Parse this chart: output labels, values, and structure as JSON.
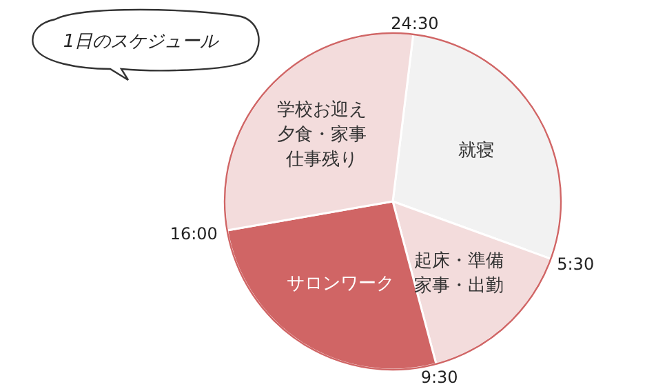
{
  "chart_data": {
    "type": "pie",
    "title": "1日のスケジュール",
    "categories": [
      "就寝",
      "起床・準備家事・出勤",
      "サロンワーク",
      "学校お迎え夕食・家事仕事残り"
    ],
    "values": [
      28.6,
      15.3,
      26.4,
      29.7
    ],
    "colors": [
      "#f2f2f2",
      "#f3dcdc",
      "#d06565",
      "#f3dcdc"
    ],
    "annotations": [
      "24:30",
      "5:30",
      "9:30",
      "16:00"
    ],
    "legend": false
  }
}
